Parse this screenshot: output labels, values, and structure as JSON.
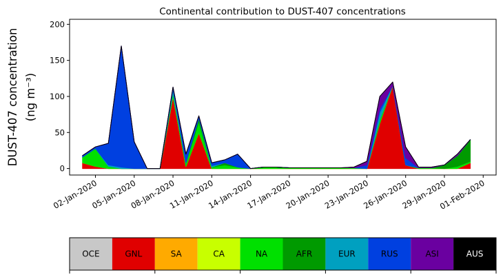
{
  "chart_data": {
    "type": "stacked_area",
    "title": "Continental contribution to DUST-407 concentrations",
    "ylabel": [
      "DUST-407 concentration",
      "(ng m⁻³)"
    ],
    "x": [
      "2020-01-01",
      "2020-01-02",
      "2020-01-03",
      "2020-01-04",
      "2020-01-05",
      "2020-01-06",
      "2020-01-07",
      "2020-01-08",
      "2020-01-09",
      "2020-01-10",
      "2020-01-11",
      "2020-01-12",
      "2020-01-13",
      "2020-01-14",
      "2020-01-15",
      "2020-01-16",
      "2020-01-17",
      "2020-01-18",
      "2020-01-19",
      "2020-01-20",
      "2020-01-21",
      "2020-01-22",
      "2020-01-23",
      "2020-01-24",
      "2020-01-25",
      "2020-01-26",
      "2020-01-27",
      "2020-01-28",
      "2020-01-29",
      "2020-01-30",
      "2020-01-31"
    ],
    "xlim": [
      "2019-12-31",
      "2020-02-02"
    ],
    "xticks": [
      {
        "value": "2020-01-02",
        "label": "02-Jan-2020"
      },
      {
        "value": "2020-01-05",
        "label": "05-Jan-2020"
      },
      {
        "value": "2020-01-08",
        "label": "08-Jan-2020"
      },
      {
        "value": "2020-01-11",
        "label": "11-Jan-2020"
      },
      {
        "value": "2020-01-14",
        "label": "14-Jan-2020"
      },
      {
        "value": "2020-01-17",
        "label": "17-Jan-2020"
      },
      {
        "value": "2020-01-20",
        "label": "20-Jan-2020"
      },
      {
        "value": "2020-01-23",
        "label": "23-Jan-2020"
      },
      {
        "value": "2020-01-26",
        "label": "26-Jan-2020"
      },
      {
        "value": "2020-01-29",
        "label": "29-Jan-2020"
      },
      {
        "value": "2020-02-01",
        "label": "01-Feb-2020"
      }
    ],
    "ylim": [
      -9,
      207
    ],
    "yticks": [
      0,
      50,
      100,
      150,
      200
    ],
    "series": [
      {
        "name": "OCE",
        "color": "#c8c8c8",
        "values": [
          0,
          0,
          0,
          0,
          0,
          0,
          0,
          0,
          0,
          0,
          0,
          0,
          0,
          0,
          0,
          0,
          0,
          0,
          0,
          0,
          0,
          0,
          0,
          0,
          0,
          0,
          0,
          0,
          0,
          0,
          0
        ]
      },
      {
        "name": "GNL",
        "color": "#e00000",
        "values": [
          8,
          3,
          0,
          0,
          0,
          0,
          0,
          100,
          3,
          50,
          0,
          0,
          0,
          0,
          0,
          0,
          0,
          0,
          0,
          0,
          0,
          0,
          0,
          63,
          115,
          5,
          0,
          0,
          0,
          0,
          8
        ]
      },
      {
        "name": "SA",
        "color": "#ffaa00",
        "values": [
          0,
          0,
          0,
          0,
          0,
          0,
          0,
          0,
          0,
          0,
          0,
          0,
          0,
          0,
          0,
          0,
          0,
          0,
          0,
          0,
          0,
          0,
          0,
          0,
          0,
          0,
          0,
          0,
          0,
          0,
          0
        ]
      },
      {
        "name": "CA",
        "color": "#c8ff00",
        "values": [
          0,
          0,
          0,
          0,
          0,
          0,
          0,
          0,
          0,
          0,
          0,
          0,
          0,
          0,
          0,
          0,
          0,
          0,
          0,
          0,
          0,
          0,
          0,
          0,
          0,
          0,
          0,
          0,
          0,
          0,
          0
        ]
      },
      {
        "name": "NA",
        "color": "#00e000",
        "values": [
          8,
          25,
          3,
          0,
          0,
          0,
          0,
          5,
          5,
          15,
          2,
          5,
          2,
          0,
          2,
          2,
          1,
          1,
          1,
          1,
          1,
          1,
          0,
          5,
          0,
          0,
          1,
          1,
          0,
          3,
          2
        ]
      },
      {
        "name": "AFR",
        "color": "#009a00",
        "values": [
          0,
          0,
          0,
          0,
          0,
          0,
          0,
          0,
          0,
          5,
          0,
          3,
          0,
          0,
          0,
          0,
          0,
          0,
          0,
          0,
          0,
          0,
          0,
          0,
          0,
          0,
          0,
          0,
          5,
          15,
          30
        ]
      },
      {
        "name": "EUR",
        "color": "#00a0c0",
        "values": [
          0,
          0,
          2,
          2,
          0,
          0,
          0,
          5,
          0,
          0,
          2,
          0,
          0,
          0,
          0,
          0,
          0,
          0,
          0,
          0,
          0,
          0,
          0,
          10,
          0,
          0,
          0,
          0,
          0,
          0,
          0
        ]
      },
      {
        "name": "RUS",
        "color": "#0040e0",
        "values": [
          2,
          2,
          30,
          168,
          37,
          0,
          0,
          3,
          12,
          3,
          4,
          4,
          18,
          0,
          0,
          0,
          0,
          0,
          0,
          0,
          0,
          0,
          5,
          5,
          0,
          10,
          0,
          0,
          0,
          0,
          0
        ]
      },
      {
        "name": "ASI",
        "color": "#6a00a0",
        "values": [
          0,
          0,
          0,
          0,
          0,
          0,
          0,
          0,
          0,
          0,
          0,
          0,
          0,
          0,
          0,
          0,
          0,
          0,
          0,
          0,
          0,
          1,
          5,
          17,
          5,
          15,
          1,
          1,
          0,
          2,
          0
        ]
      },
      {
        "name": "AUS",
        "color": "#000000",
        "values": [
          0,
          0,
          0,
          0,
          0,
          0,
          0,
          0,
          0,
          0,
          0,
          0,
          0,
          0,
          0,
          0,
          0,
          0,
          0,
          0,
          0,
          0,
          0,
          0,
          0,
          0,
          0,
          0,
          0,
          0,
          0
        ]
      }
    ]
  }
}
